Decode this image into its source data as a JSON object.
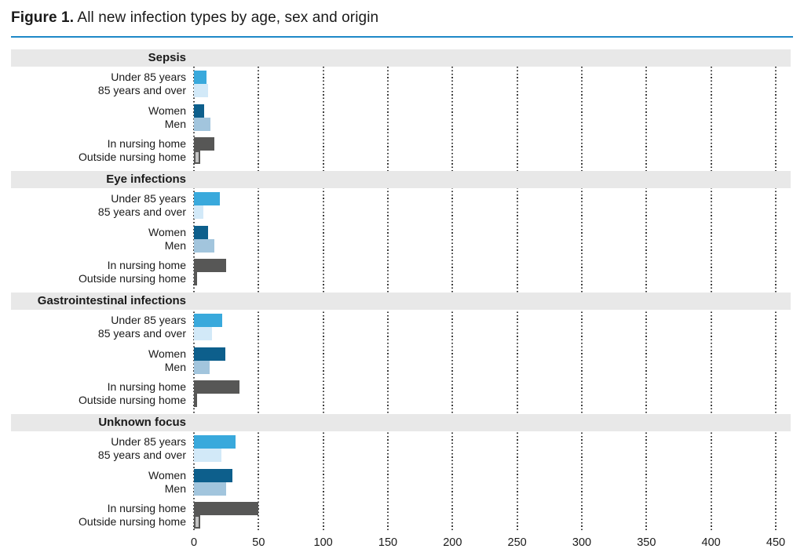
{
  "title": {
    "prefix": "Figure 1.",
    "text": " All new infection types by age, sex and origin"
  },
  "style": {
    "rule_color": "#1e88c7",
    "band_background": "#e8e8e8",
    "grid_color": "#3a3a3a",
    "text_color": "#1a1a1a",
    "outline_color": "#575756"
  },
  "chart_data": {
    "type": "bar",
    "orientation": "horizontal",
    "title": "Figure 1. All new infection types by age, sex and origin",
    "xlabel": "",
    "ylabel": "",
    "xlim": [
      0,
      450
    ],
    "x_ticks": [
      0,
      50,
      100,
      150,
      200,
      250,
      300,
      350,
      400,
      450
    ],
    "grid": "dotted-vertical",
    "legend": "none",
    "row_labels": [
      "Under 85 years",
      "85 years and over",
      "Women",
      "Men",
      "In nursing home",
      "Outside nursing home"
    ],
    "row_colors": [
      "#39a9dc",
      "#d2e9f8",
      "#0d5f8c",
      "#a2c5dd",
      "#575756",
      "#c4c4c4"
    ],
    "row_outlined": [
      false,
      false,
      false,
      false,
      false,
      true
    ],
    "groups": [
      {
        "name": "Sepsis",
        "values": [
          10,
          11,
          8,
          13,
          16,
          5
        ]
      },
      {
        "name": "Eye infections",
        "values": [
          20,
          7,
          11,
          16,
          25,
          2
        ]
      },
      {
        "name": "Gastrointestinal infections",
        "values": [
          22,
          14,
          24,
          12,
          35,
          2
        ]
      },
      {
        "name": "Unknown focus",
        "values": [
          32,
          21,
          30,
          25,
          50,
          5
        ]
      }
    ]
  }
}
